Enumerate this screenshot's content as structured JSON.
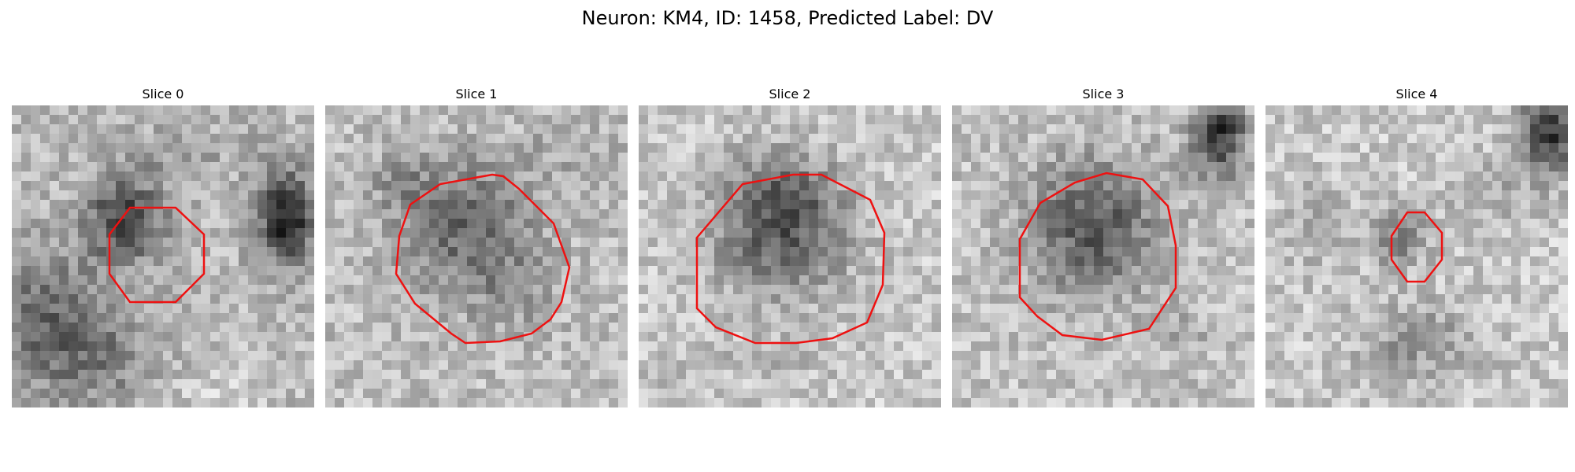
{
  "figure": {
    "title": "Neuron: KM4, ID: 1458, Predicted Label: DV",
    "outline_color": "#ee1111"
  },
  "slices": [
    {
      "title": "Slice 0"
    },
    {
      "title": "Slice 1"
    },
    {
      "title": "Slice 2"
    },
    {
      "title": "Slice 3"
    },
    {
      "title": "Slice 4"
    }
  ]
}
